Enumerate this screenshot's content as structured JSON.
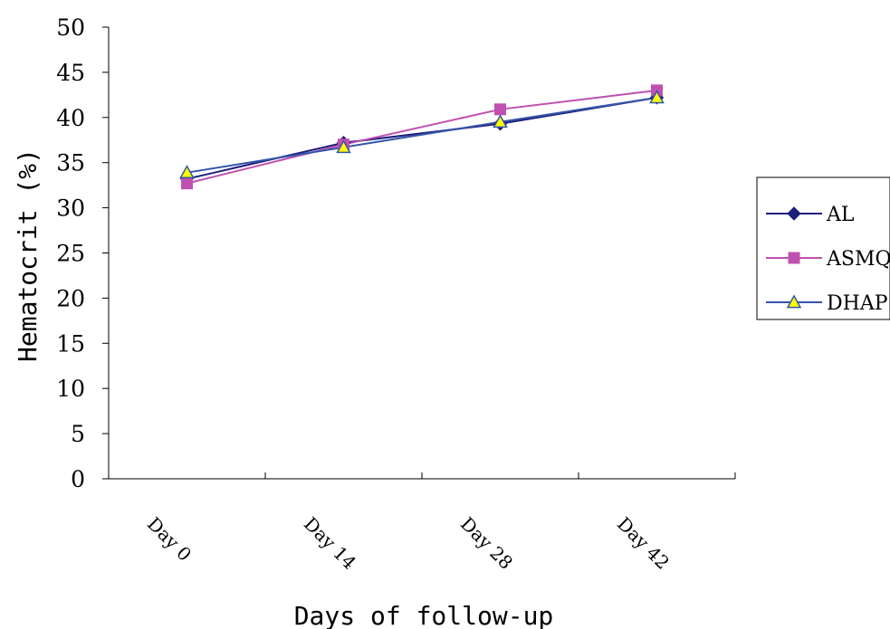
{
  "chart_data": {
    "type": "line",
    "title": "",
    "xlabel": "Days of follow-up",
    "ylabel": "Hematocrit (%)",
    "categories": [
      "Day 0",
      "Day 14",
      "Day 28",
      "Day 42"
    ],
    "ylim": [
      0,
      50
    ],
    "yticks": [
      0,
      5,
      10,
      15,
      20,
      25,
      30,
      35,
      40,
      45,
      50
    ],
    "grid": false,
    "legend_position": "right",
    "series": [
      {
        "name": "AL",
        "color": "#1f1f7a",
        "marker": "diamond",
        "values": [
          33.2,
          37.2,
          39.3,
          42.2
        ]
      },
      {
        "name": "ASMQ",
        "color": "#c050b0",
        "marker": "square",
        "values": [
          32.7,
          37.0,
          40.9,
          43.0
        ]
      },
      {
        "name": "DHAP",
        "color": "#3355aa",
        "marker": "triangle",
        "marker_fill": "#ffff00",
        "values": [
          33.9,
          36.7,
          39.5,
          42.2
        ]
      }
    ]
  }
}
